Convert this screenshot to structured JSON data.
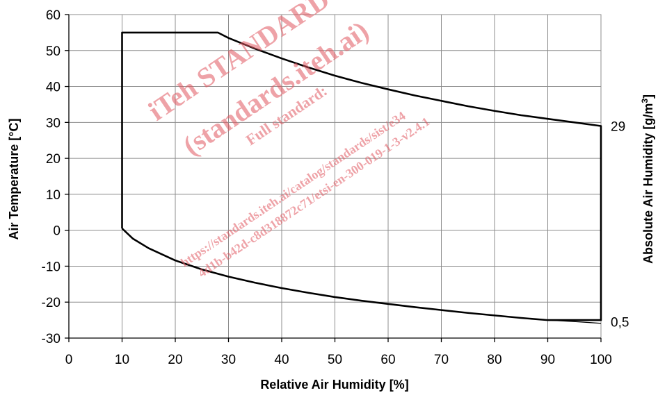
{
  "chart_data": {
    "type": "line",
    "title": "",
    "xlabel": "Relative Air Humidity [%]",
    "ylabel": "Air Temperature [°C]",
    "y2label_main": "Absolute Air  Humidity [g/m",
    "y2label_sup": "3",
    "y2label_end": "]",
    "xlim": [
      0,
      100
    ],
    "ylim": [
      -30,
      60
    ],
    "xticks": [
      0,
      10,
      20,
      30,
      40,
      50,
      60,
      70,
      80,
      90,
      100
    ],
    "yticks": [
      -30,
      -20,
      -10,
      0,
      10,
      20,
      30,
      40,
      50,
      60
    ],
    "xtick_labels": [
      "0",
      "10",
      "20",
      "30",
      "40",
      "50",
      "60",
      "70",
      "80",
      "90",
      "100"
    ],
    "ytick_labels": [
      "-30",
      "-20",
      "-10",
      "0",
      "10",
      "20",
      "30",
      "40",
      "50",
      "60"
    ],
    "grid": true,
    "y2_annotations": [
      {
        "label": "29",
        "y": 29
      },
      {
        "label": "0,5",
        "y": -25.5
      }
    ],
    "series": [
      {
        "values": [
          [
            10,
            0.5
          ],
          [
            10,
            55
          ],
          [
            28,
            55
          ],
          [
            30,
            53.5
          ],
          [
            35,
            50.5
          ],
          [
            40,
            47.8
          ],
          [
            45,
            45.3
          ],
          [
            50,
            43
          ],
          [
            55,
            41
          ],
          [
            60,
            39.2
          ],
          [
            65,
            37.5
          ],
          [
            70,
            36
          ],
          [
            75,
            34.5
          ],
          [
            80,
            33.2
          ],
          [
            85,
            32
          ],
          [
            90,
            31
          ],
          [
            95,
            30
          ],
          [
            100,
            29
          ],
          [
            100,
            -25
          ],
          [
            95,
            -25
          ],
          [
            90,
            -25
          ],
          [
            85,
            -24.4
          ],
          [
            80,
            -23.7
          ],
          [
            75,
            -23
          ],
          [
            70,
            -22.2
          ],
          [
            65,
            -21.4
          ],
          [
            60,
            -20.5
          ],
          [
            55,
            -19.6
          ],
          [
            50,
            -18.6
          ],
          [
            45,
            -17.4
          ],
          [
            40,
            -16.1
          ],
          [
            35,
            -14.6
          ],
          [
            30,
            -12.9
          ],
          [
            25,
            -10.9
          ],
          [
            20,
            -8.4
          ],
          [
            15,
            -5
          ],
          [
            12,
            -2.3
          ],
          [
            10,
            0.5
          ]
        ]
      },
      {
        "values": [
          [
            90,
            -25
          ],
          [
            95,
            -25.4
          ],
          [
            100,
            -25.9
          ]
        ]
      }
    ]
  },
  "watermark": {
    "line1": "iTeh STANDARD PREVIEW",
    "line2": "(standards.iteh.ai)",
    "line3": "Full standard:",
    "line4": "https://standards.iteh.ai/catalog/standards/sist/e34",
    "line5": "4d1b-b42d-c8d318872c71/etsi-en-300-019-1-3-v2.4.1"
  }
}
